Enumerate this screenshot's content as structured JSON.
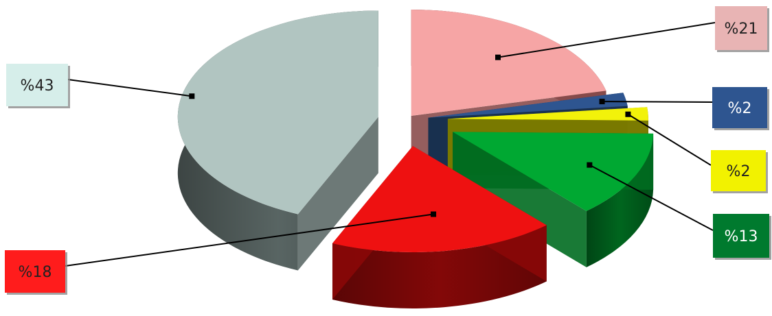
{
  "chart_data": {
    "type": "pie",
    "style": "3d-exploded",
    "title": "",
    "legend": "none",
    "slices": [
      {
        "label": "%21",
        "value": 21,
        "color": "#f6a5a5",
        "dark": "#8a4d4d",
        "label_bg": "#e8b4b4",
        "label_fg": "#222222"
      },
      {
        "label": "%2",
        "value": 2,
        "color": "#2e5590",
        "dark": "#17304f",
        "label_bg": "#2e5590",
        "label_fg": "#ffffff"
      },
      {
        "label": "%2",
        "value": 2,
        "color": "#f2f20a",
        "dark": "#7a7a00",
        "label_bg": "#f2f200",
        "label_fg": "#222222"
      },
      {
        "label": "%13",
        "value": 13,
        "color": "#00a832",
        "dark": "#006b20",
        "label_bg": "#007a2e",
        "label_fg": "#ffffff"
      },
      {
        "label": "%18",
        "value": 18,
        "color": "#ee1111",
        "dark": "#8a0808",
        "label_bg": "#ff1a1a",
        "label_fg": "#222222"
      },
      {
        "label": "%43",
        "value": 43,
        "color": "#b1c5c1",
        "dark": "#5d6a68",
        "label_bg": "#d6eeea",
        "label_fg": "#222222"
      }
    ]
  }
}
